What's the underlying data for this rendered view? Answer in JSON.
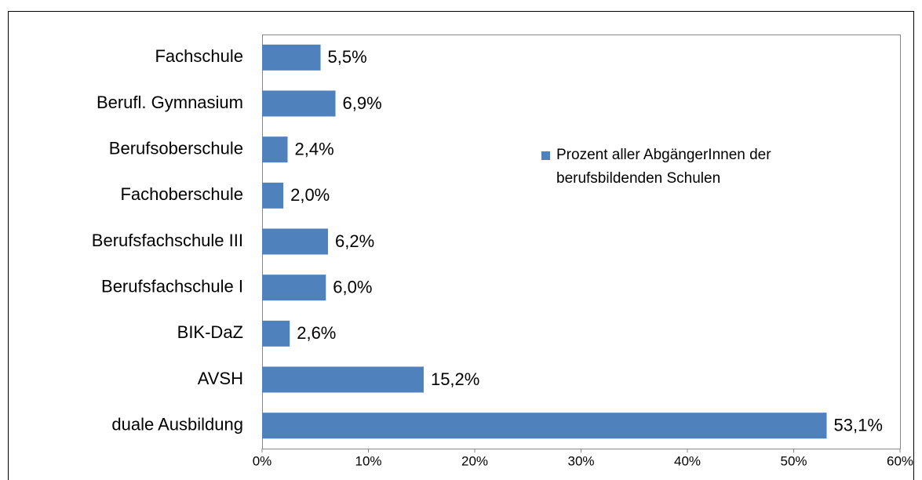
{
  "chart_data": {
    "type": "bar",
    "orientation": "horizontal",
    "categories": [
      "Fachschule",
      "Berufl. Gymnasium",
      "Berufsoberschule",
      "Fachoberschule",
      "Berufsfachschule III",
      "Berufsfachschule I",
      "BIK-DaZ",
      "AVSH",
      "duale Ausbildung"
    ],
    "series": [
      {
        "name": "Prozent aller AbgängerInnen der berufsbildenden Schulen",
        "color": "#4f81bd",
        "values": [
          5.5,
          6.9,
          2.4,
          2.0,
          6.2,
          6.0,
          2.6,
          15.2,
          53.1
        ],
        "value_labels": [
          "5,5%",
          "6,9%",
          "2,4%",
          "2,0%",
          "6,2%",
          "6,0%",
          "2,6%",
          "15,2%",
          "53,1%"
        ]
      }
    ],
    "xlim": [
      0,
      60
    ],
    "xticks": [
      {
        "value": 0,
        "label": "0%"
      },
      {
        "value": 10,
        "label": "10%"
      },
      {
        "value": 20,
        "label": "20%"
      },
      {
        "value": 30,
        "label": "30%"
      },
      {
        "value": 40,
        "label": "40%"
      },
      {
        "value": 50,
        "label": "50%"
      },
      {
        "value": 60,
        "label": "60%"
      }
    ],
    "legend": "right"
  }
}
